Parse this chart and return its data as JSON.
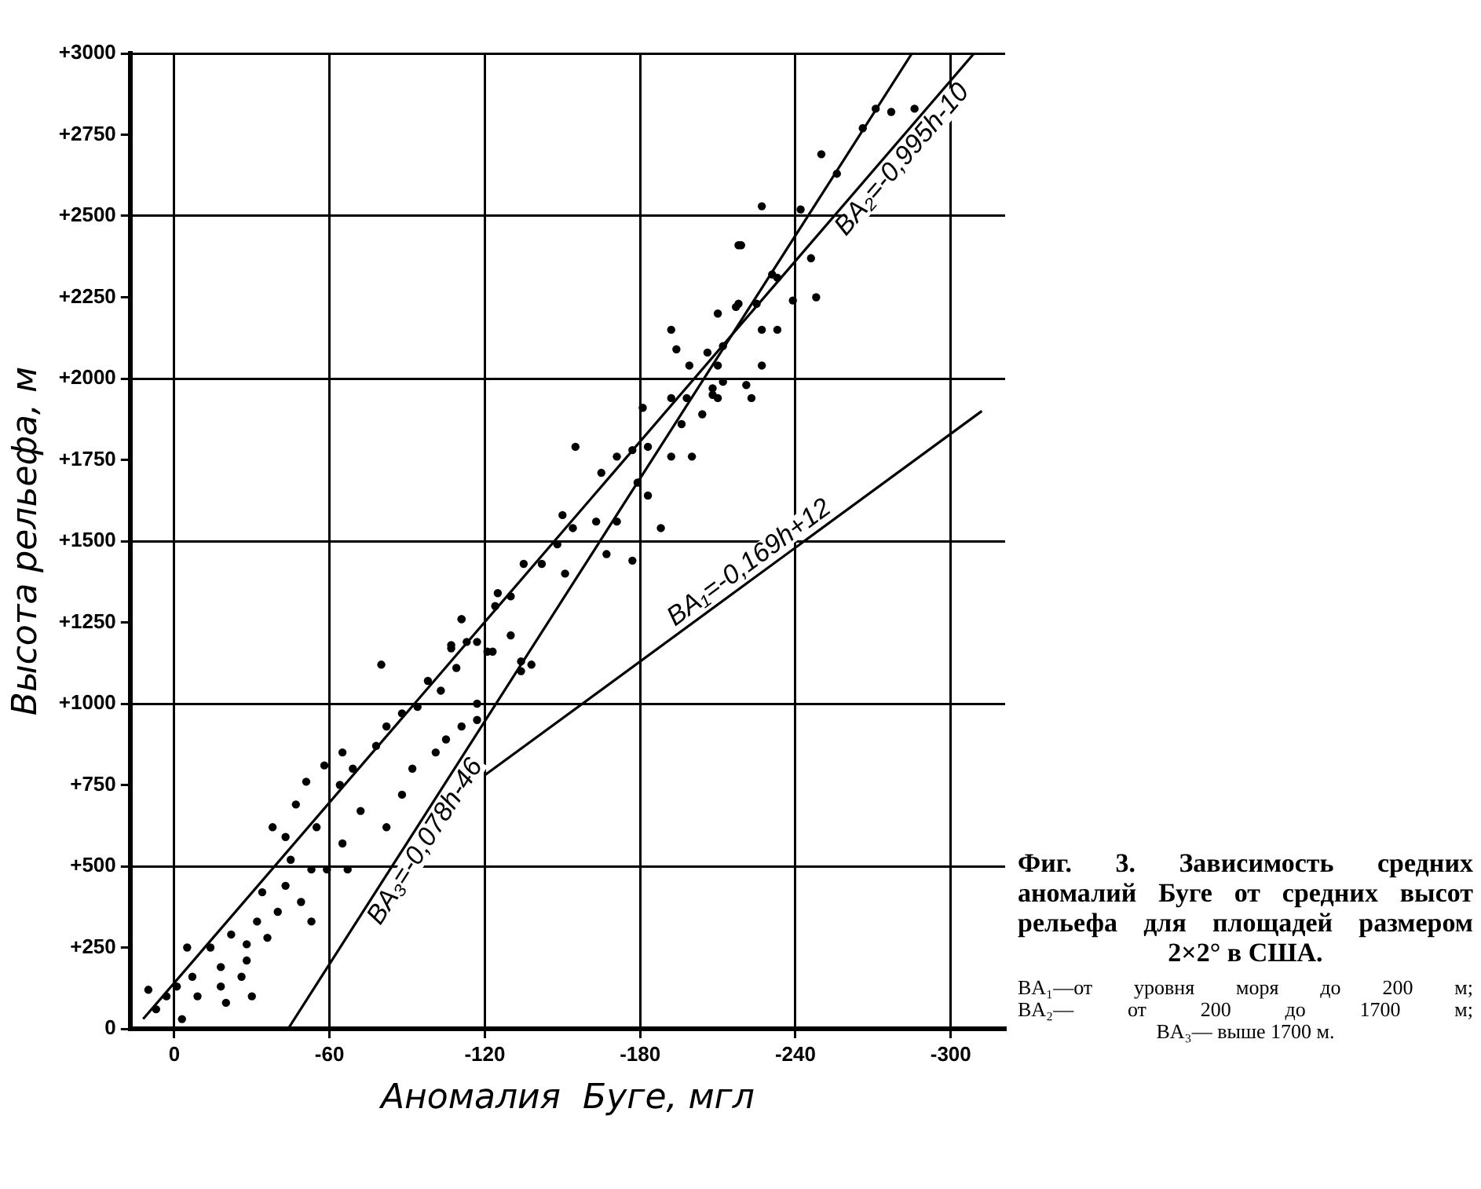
{
  "chart_data": {
    "type": "scatter",
    "title": "Фиг. 3. Зависимость средних аномалий Буге от средних высот рельефа для площадей размером 2×2° в США.",
    "xlabel": "Аномалия  Буге, мгл",
    "ylabel": "Высота рельефа, м",
    "annotations": [
      "BA₁—от уровня моря до 200 м;",
      "BA₂— от 200 до 1700 м;",
      "BA₃— выше 1700 м."
    ],
    "xlim": [
      17,
      -321
    ],
    "xticks": [
      0,
      -60,
      -120,
      -180,
      -240,
      -300
    ],
    "ylim": [
      0,
      3000
    ],
    "yticks": [
      0,
      {
        "value": 250,
        "label": "+250"
      },
      {
        "value": 500,
        "label": "+500"
      },
      {
        "value": 750,
        "label": "+750"
      },
      {
        "value": 1000,
        "label": "+1000"
      },
      {
        "value": 1250,
        "label": "+1250"
      },
      {
        "value": 1500,
        "label": "+1500"
      },
      {
        "value": 1750,
        "label": "+1750"
      },
      {
        "value": 2000,
        "label": "+2000"
      },
      {
        "value": 2250,
        "label": "+2250"
      },
      {
        "value": 2500,
        "label": "+2500"
      },
      {
        "value": 2750,
        "label": "+2750"
      },
      {
        "value": 3000,
        "label": "+3000"
      }
    ],
    "grid": true,
    "legend": false,
    "series": [
      {
        "type": "scatter",
        "color": "#000000",
        "marker": "circle",
        "x": [
          10,
          7,
          3,
          -1,
          -5,
          -14,
          -3,
          -9,
          -18,
          -22,
          -28,
          -32,
          -30,
          -36,
          -40,
          -43,
          -45,
          -49,
          -53,
          -55,
          -38,
          -47,
          -51,
          -58,
          -65,
          -64,
          -69,
          -78,
          -82,
          -88,
          -94,
          -98,
          -103,
          -109,
          -111,
          -107,
          -117,
          -123,
          -130,
          -134,
          -138,
          -125,
          -80,
          -65,
          -72,
          -82,
          -88,
          -92,
          -101,
          -105,
          -111,
          -117,
          -20,
          -7,
          -26,
          -34,
          -53,
          -59,
          -28,
          -43,
          -67,
          -18,
          -111,
          -107,
          -113,
          -121,
          -124,
          -130,
          -135,
          -142,
          -148,
          -151,
          -154,
          -163,
          -167,
          -177,
          -171,
          -155,
          -150,
          -165,
          -171,
          -177,
          -183,
          -192,
          -200,
          -183,
          -188,
          -181,
          -192,
          -196,
          -204,
          -208,
          -212,
          -206,
          -212,
          -221,
          -194,
          -199,
          -192,
          -217,
          -225,
          -233,
          -231,
          -218,
          -210,
          -179,
          -134,
          -117,
          -210,
          -218,
          -227,
          -242,
          -219,
          -233,
          -239,
          -248,
          -250,
          -256,
          -266,
          -271,
          -277,
          -286,
          -246,
          -227,
          -210,
          -223,
          -227,
          -198,
          -208
        ],
        "values": [
          120,
          60,
          100,
          130,
          250,
          250,
          30,
          100,
          190,
          290,
          210,
          330,
          100,
          280,
          360,
          440,
          520,
          390,
          490,
          620,
          620,
          690,
          760,
          810,
          850,
          750,
          800,
          870,
          930,
          970,
          990,
          1070,
          1040,
          1110,
          1260,
          1180,
          1190,
          1160,
          1210,
          1130,
          1120,
          1340,
          1120,
          570,
          670,
          620,
          720,
          800,
          850,
          890,
          930,
          950,
          80,
          160,
          160,
          420,
          330,
          490,
          260,
          590,
          490,
          130,
          1260,
          1170,
          1190,
          1160,
          1300,
          1330,
          1430,
          1430,
          1490,
          1400,
          1540,
          1560,
          1460,
          1440,
          1560,
          1790,
          1580,
          1710,
          1760,
          1780,
          1790,
          1760,
          1760,
          1640,
          1540,
          1910,
          1940,
          1860,
          1890,
          1950,
          1990,
          2080,
          2100,
          1980,
          2090,
          2040,
          2150,
          2220,
          2230,
          2150,
          2320,
          2410,
          2200,
          1680,
          1100,
          1000,
          2040,
          2230,
          2530,
          2520,
          2410,
          2310,
          2240,
          2250,
          2690,
          2630,
          2770,
          2830,
          2820,
          2830,
          2370,
          2150,
          1940,
          1940,
          2040,
          1940,
          1970
        ]
      },
      {
        "type": "line",
        "name": "BA₁=-0,169h+12",
        "color": "#000000",
        "marker": "none",
        "x": [
          -120,
          -312
        ],
        "values": [
          780,
          1900
        ]
      },
      {
        "type": "line",
        "name": "BA₂=-0,995h-10",
        "color": "#000000",
        "marker": "none",
        "x": [
          12,
          -309
        ],
        "values": [
          30,
          3000
        ]
      },
      {
        "type": "line",
        "name": "BA₃=-0,078h-46",
        "color": "#000000",
        "marker": "none",
        "x": [
          -44,
          -285
        ],
        "values": [
          0,
          3000
        ]
      }
    ]
  }
}
